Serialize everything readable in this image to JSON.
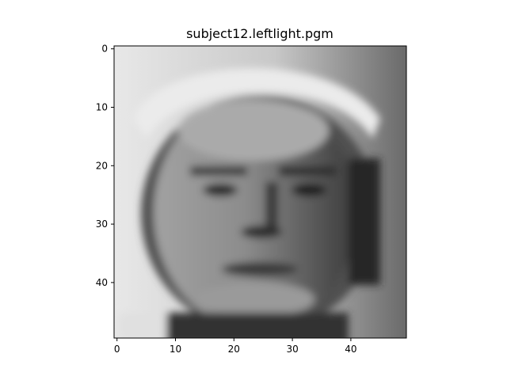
{
  "figure": {
    "title": "subject12.leftlight.pgm"
  },
  "chart_data": {
    "type": "heatmap",
    "colormap": "gray",
    "title": "subject12.leftlight.pgm",
    "xlabel": "",
    "ylabel": "",
    "xlim": [
      -0.5,
      49.5
    ],
    "ylim": [
      49.5,
      -0.5
    ],
    "x_ticks": [
      0,
      10,
      20,
      30,
      40
    ],
    "y_ticks": [
      0,
      10,
      20,
      30,
      40
    ],
    "grid": false,
    "value_range": [
      0,
      255
    ]
  }
}
